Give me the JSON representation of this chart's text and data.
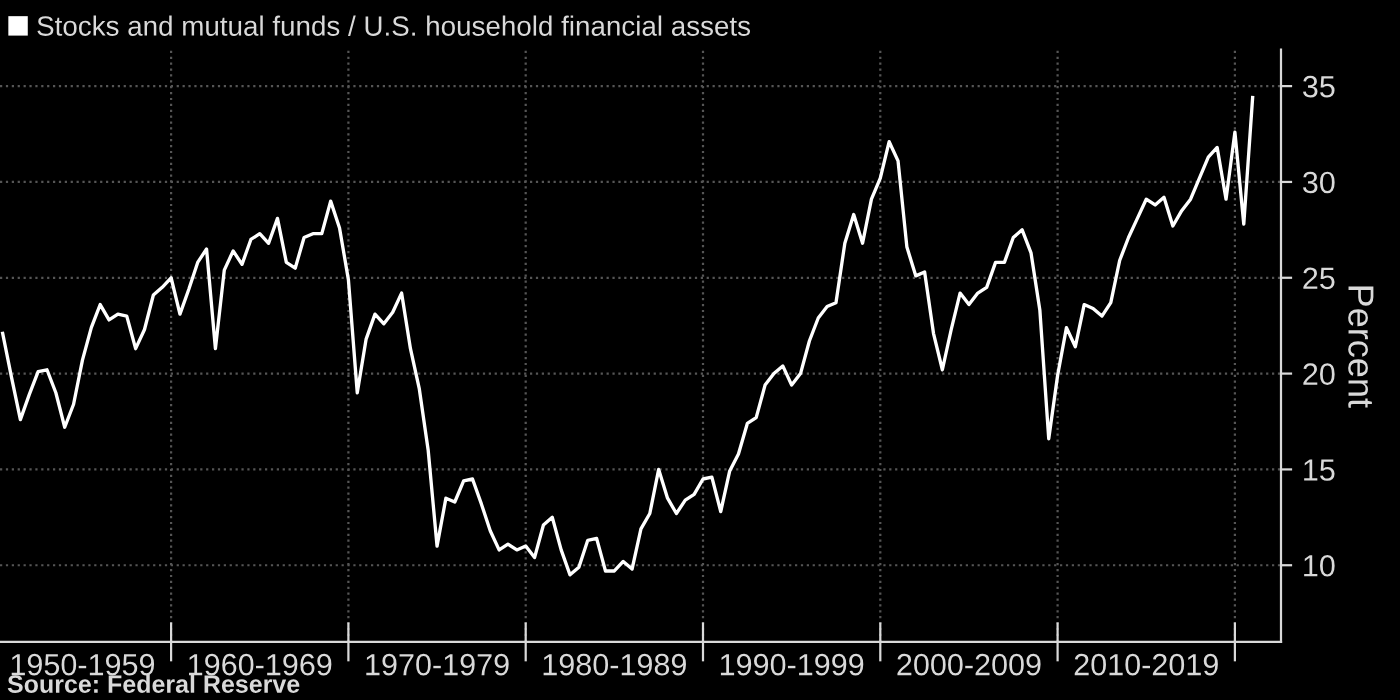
{
  "chart_data": {
    "type": "line",
    "ylabel": "Percent",
    "annotations": [
      "Source: Federal Reserve"
    ],
    "categories": [
      null,
      null,
      null,
      null,
      null,
      null,
      null,
      null,
      null,
      "1950-1959",
      null,
      null,
      null,
      null,
      null,
      null,
      null,
      null,
      null,
      null,
      null,
      null,
      null,
      null,
      null,
      null,
      null,
      null,
      null,
      "1960-1969",
      null,
      null,
      null,
      null,
      null,
      null,
      null,
      null,
      null,
      null,
      null,
      null,
      null,
      null,
      null,
      null,
      null,
      null,
      null,
      "1970-1979",
      null,
      null,
      null,
      null,
      null,
      null,
      null,
      null,
      null,
      null,
      null,
      null,
      null,
      null,
      null,
      null,
      null,
      null,
      null,
      "1980-1989",
      null,
      null,
      null,
      null,
      null,
      null,
      null,
      null,
      null,
      null,
      null,
      null,
      null,
      null,
      null,
      null,
      null,
      null,
      null,
      "1990-1999",
      null,
      null,
      null,
      null,
      null,
      null,
      null,
      null,
      null,
      null,
      null,
      null,
      null,
      null,
      null,
      null,
      null,
      null,
      null,
      "2000-2009",
      null,
      null,
      null,
      null,
      null,
      null,
      null,
      null,
      null,
      null,
      null,
      null,
      null,
      null,
      null,
      null,
      null,
      null,
      null,
      "2010-2019",
      null,
      null,
      null,
      null,
      null,
      null,
      null,
      null,
      null,
      null,
      null,
      null
    ],
    "series": [
      {
        "name": "Stocks and mutual funds / U.S. household financial assets",
        "color": "#ffffff",
        "values": [
          22.1,
          19.8,
          17.6,
          18.9,
          20.1,
          20.2,
          19.0,
          17.2,
          18.4,
          20.7,
          22.4,
          23.6,
          22.8,
          23.1,
          23.0,
          21.3,
          22.3,
          24.1,
          24.5,
          25.0,
          23.1,
          24.4,
          25.8,
          26.5,
          21.3,
          25.4,
          26.4,
          25.7,
          27.0,
          27.3,
          26.8,
          28.1,
          25.8,
          25.5,
          27.1,
          27.3,
          27.3,
          29.0,
          27.6,
          24.9,
          19.0,
          21.8,
          23.1,
          22.6,
          23.2,
          24.2,
          21.3,
          19.2,
          16.0,
          11.0,
          13.5,
          13.3,
          14.4,
          14.5,
          13.2,
          11.8,
          10.8,
          11.1,
          10.8,
          11.0,
          10.4,
          12.1,
          12.5,
          10.8,
          9.5,
          9.9,
          11.3,
          11.4,
          9.7,
          9.7,
          10.2,
          9.8,
          11.9,
          12.7,
          15.0,
          13.5,
          12.7,
          13.4,
          13.7,
          14.5,
          14.6,
          12.8,
          14.9,
          15.8,
          17.4,
          17.7,
          19.4,
          20.0,
          20.4,
          19.4,
          20.0,
          21.7,
          22.9,
          23.5,
          23.7,
          26.8,
          28.3,
          26.8,
          29.1,
          30.2,
          32.1,
          31.1,
          26.6,
          25.1,
          25.3,
          22.1,
          20.2,
          22.3,
          24.2,
          23.6,
          24.2,
          24.5,
          25.8,
          25.8,
          27.1,
          27.5,
          26.3,
          23.3,
          16.6,
          19.9,
          22.4,
          21.4,
          23.6,
          23.4,
          23.0,
          23.7,
          25.9,
          27.1,
          28.1,
          29.1,
          28.8,
          29.2,
          27.7,
          28.5,
          29.1,
          30.2,
          31.3,
          31.8,
          29.1,
          32.6,
          27.8,
          34.4
        ]
      }
    ],
    "ylim": [
      6.0,
      36.9
    ],
    "yticks": [
      10,
      15,
      20,
      25,
      30,
      35
    ],
    "grid": true,
    "legend": "top left",
    "line_style": "solid",
    "marker": "none"
  }
}
